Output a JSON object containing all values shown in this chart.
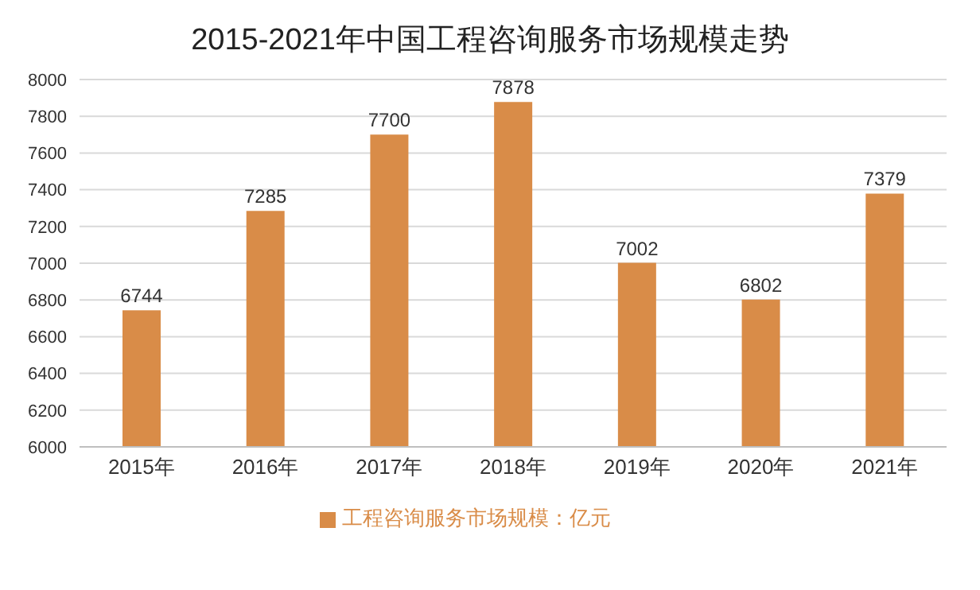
{
  "chart_data": {
    "type": "bar",
    "title": "2015-2021年中国工程咨询服务市场规模走势",
    "categories": [
      "2015年",
      "2016年",
      "2017年",
      "2018年",
      "2019年",
      "2020年",
      "2021年"
    ],
    "series": [
      {
        "name": "工程咨询服务市场规模：亿元",
        "color": "#d98c48",
        "values": [
          6744,
          7285,
          7700,
          7878,
          7002,
          6802,
          7379
        ]
      }
    ],
    "ylim": [
      6000,
      8000
    ],
    "yticks": [
      6000,
      6200,
      6400,
      6600,
      6800,
      7000,
      7200,
      7400,
      7600,
      7800,
      8000
    ],
    "grid": "y",
    "legend": "bottom",
    "data_labels": true
  }
}
